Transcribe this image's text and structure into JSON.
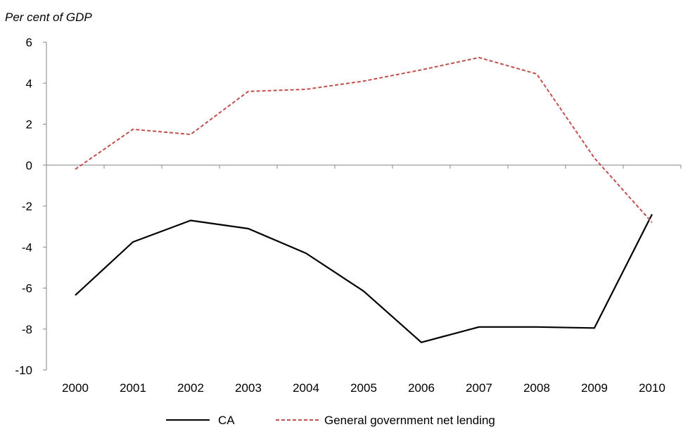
{
  "chart_data": {
    "type": "line",
    "title": "",
    "ylabel": "Per cent of GDP",
    "xlabel": "",
    "categories": [
      "2000",
      "2001",
      "2002",
      "2003",
      "2004",
      "2005",
      "2006",
      "2007",
      "2008",
      "2009",
      "2010"
    ],
    "yticks": [
      6,
      4,
      2,
      0,
      -2,
      -4,
      -6,
      -8,
      -10
    ],
    "ylim": [
      -10,
      6
    ],
    "grid": false,
    "legend_position": "bottom",
    "series": [
      {
        "name": "CA",
        "color": "#000000",
        "style": "solid",
        "values": [
          -6.35,
          -3.75,
          -2.7,
          -3.1,
          -4.3,
          -6.15,
          -8.65,
          -7.9,
          -7.9,
          -7.95,
          -2.4
        ]
      },
      {
        "name": "General government net lending",
        "color": "#c0504d",
        "style": "dashed",
        "values": [
          -0.2,
          1.75,
          1.5,
          3.6,
          3.7,
          4.1,
          4.65,
          5.25,
          4.45,
          0.35,
          -2.8
        ]
      }
    ]
  }
}
